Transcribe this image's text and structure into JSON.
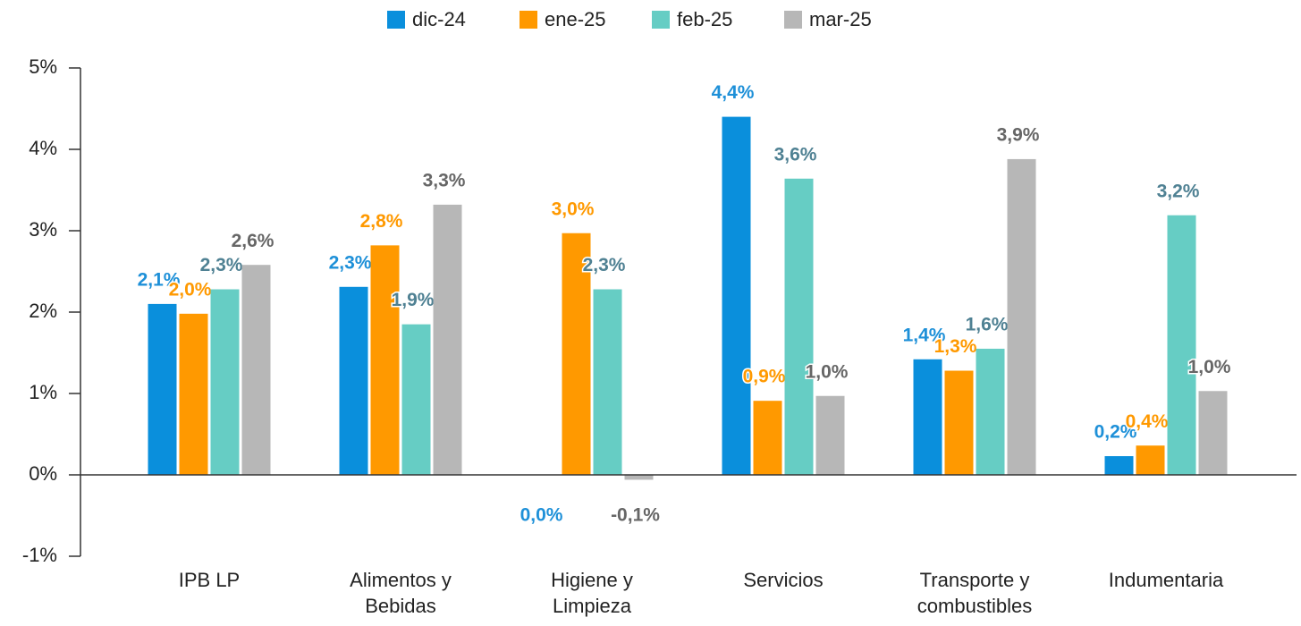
{
  "chart_data": {
    "type": "bar",
    "categories": [
      "IPB LP",
      "Alimentos y Bebidas",
      "Higiene y Limpieza",
      "Servicios",
      "Transporte y combustibles",
      "Indumentaria"
    ],
    "series": [
      {
        "name": "dic-24",
        "color": "#0a8fdc",
        "label_color": "#1e90d8",
        "values": [
          2.1,
          2.31,
          0.0,
          4.4,
          1.42,
          0.23
        ],
        "value_labels": [
          "2,1%",
          "2,3%",
          "0,0%",
          "4,4%",
          "1,4%",
          "0,2%"
        ]
      },
      {
        "name": "ene-25",
        "color": "#ff9900",
        "label_color": "#ff9900",
        "values": [
          1.98,
          2.82,
          2.97,
          0.91,
          1.28,
          0.36
        ],
        "value_labels": [
          "2,0%",
          "2,8%",
          "3,0%",
          "0,9%",
          "1,3%",
          "0,4%"
        ]
      },
      {
        "name": "feb-25",
        "color": "#66cdc4",
        "label_color": "#4f8193",
        "values": [
          2.28,
          1.85,
          2.28,
          3.64,
          1.55,
          3.19
        ],
        "value_labels": [
          "2,3%",
          "1,9%",
          "2,3%",
          "3,6%",
          "1,6%",
          "3,2%"
        ]
      },
      {
        "name": "mar-25",
        "color": "#b7b7b7",
        "label_color": "#666666",
        "values": [
          2.58,
          3.32,
          -0.06,
          0.97,
          3.88,
          1.03
        ],
        "value_labels": [
          "2,6%",
          "3,3%",
          "-0,1%",
          "1,0%",
          "3,9%",
          "1,0%"
        ]
      }
    ],
    "ylim": [
      -1,
      5
    ],
    "yticks": [
      {
        "value": -1,
        "label": "-1%"
      },
      {
        "value": 0,
        "label": "0%"
      },
      {
        "value": 1,
        "label": "1%"
      },
      {
        "value": 2,
        "label": "2%"
      },
      {
        "value": 3,
        "label": "3%"
      },
      {
        "value": 4,
        "label": "4%"
      },
      {
        "value": 5,
        "label": "5%"
      }
    ],
    "legend": "top"
  }
}
